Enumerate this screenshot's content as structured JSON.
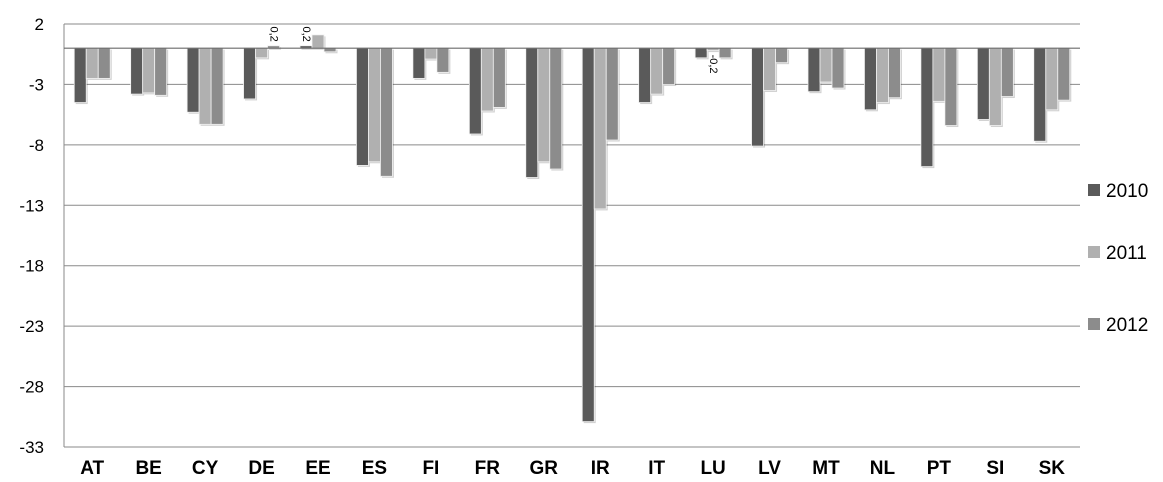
{
  "chart_data": {
    "type": "bar",
    "title": "",
    "xlabel": "",
    "ylabel": "",
    "ylim": [
      -33,
      2
    ],
    "yticks": [
      2,
      -3,
      -8,
      -13,
      -18,
      -23,
      -28,
      -33
    ],
    "grid": true,
    "legend_position": "right",
    "categories": [
      "AT",
      "BE",
      "CY",
      "DE",
      "EE",
      "ES",
      "FI",
      "FR",
      "GR",
      "IR",
      "IT",
      "LU",
      "LV",
      "MT",
      "NL",
      "PT",
      "SI",
      "SK"
    ],
    "series": [
      {
        "name": "2010",
        "color": "#5a5a5a",
        "values": [
          -4.5,
          -3.8,
          -5.3,
          -4.2,
          0.2,
          -9.7,
          -2.5,
          -7.1,
          -10.7,
          -30.9,
          -4.5,
          -0.8,
          -8.1,
          -3.6,
          -5.1,
          -9.8,
          -5.9,
          -7.7
        ]
      },
      {
        "name": "2011",
        "color": "#b0b0b0",
        "values": [
          -2.5,
          -3.7,
          -6.3,
          -0.8,
          1.1,
          -9.4,
          -0.9,
          -5.2,
          -9.4,
          -13.3,
          -3.8,
          -0.2,
          -3.5,
          -2.8,
          -4.5,
          -4.4,
          -6.4,
          -5.1
        ]
      },
      {
        "name": "2012",
        "color": "#8c8c8c",
        "values": [
          -2.5,
          -3.9,
          -6.3,
          0.2,
          -0.3,
          -10.6,
          -2.0,
          -4.9,
          -10.0,
          -7.6,
          -3.0,
          -0.8,
          -1.2,
          -3.3,
          -4.1,
          -6.4,
          -4.0,
          -4.3
        ]
      }
    ],
    "annotations": [
      {
        "series": 2,
        "category": "DE",
        "text": "0,2"
      },
      {
        "series": 0,
        "category": "EE",
        "text": "0,2"
      },
      {
        "series": 1,
        "category": "LU",
        "text": "-0,2"
      }
    ]
  }
}
